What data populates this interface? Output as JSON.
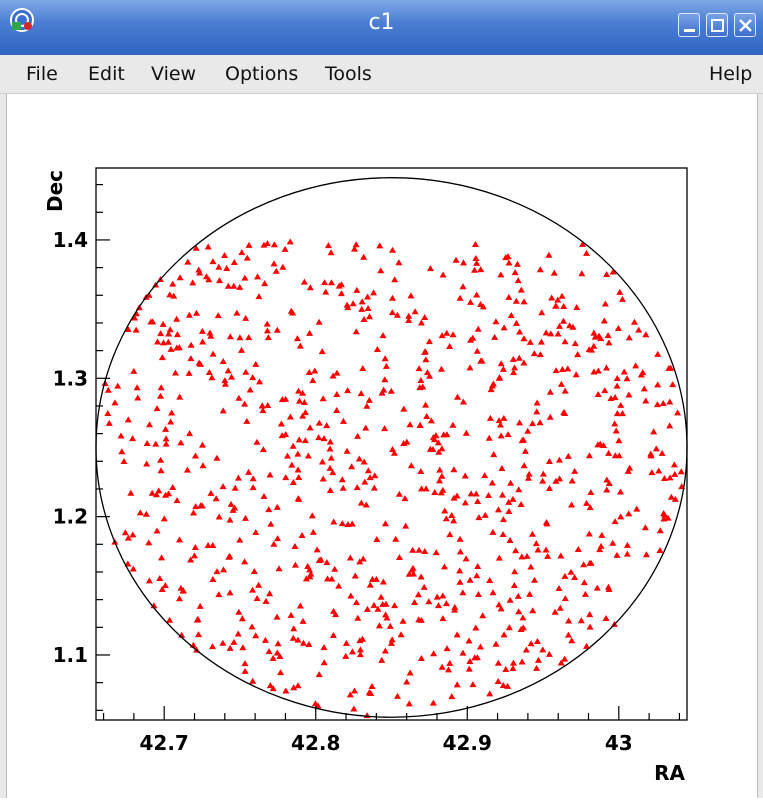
{
  "window": {
    "title": "c1",
    "colors": {
      "titlebar": "#4c7fd3",
      "menubar": "#e9e9e9",
      "points": "#ff0000"
    }
  },
  "menu": {
    "file": "File",
    "edit": "Edit",
    "view": "View",
    "options": "Options",
    "tools": "Tools",
    "help": "Help"
  },
  "chart_data": {
    "type": "scatter",
    "title": "",
    "xlabel": "RA",
    "ylabel": "Dec",
    "xlim": [
      42.655,
      43.045
    ],
    "ylim": [
      1.053,
      1.452
    ],
    "xticks": [
      {
        "value": 42.7,
        "label": "42.7"
      },
      {
        "value": 42.8,
        "label": "42.8"
      },
      {
        "value": 42.9,
        "label": "42.9"
      },
      {
        "value": 43.0,
        "label": "43"
      }
    ],
    "yticks": [
      {
        "value": 1.1,
        "label": "1.1"
      },
      {
        "value": 1.2,
        "label": "1.2"
      },
      {
        "value": 1.3,
        "label": "1.3"
      },
      {
        "value": 1.4,
        "label": "1.4"
      }
    ],
    "grid": false,
    "circle": {
      "center_ra": 42.85,
      "center_dec": 1.25,
      "radius": 0.195
    },
    "point_count": 900,
    "point_dec_max": 1.4,
    "seed": 42
  }
}
